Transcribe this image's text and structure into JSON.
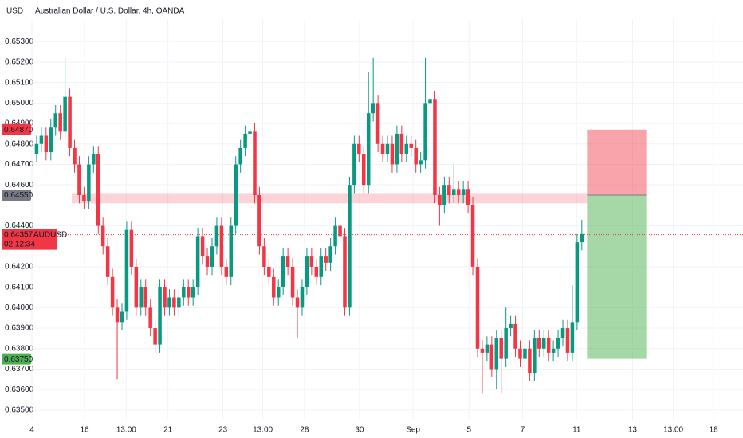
{
  "chart_data": {
    "type": "candlestick",
    "title": "Australian Dollar / U.S. Dollar, 4h, OANDA",
    "currency": "USD",
    "up_color": "#089981",
    "down_color": "#f23645",
    "grid": true,
    "ylim": [
      0.6348,
      0.6541
    ],
    "yticks": [
      {
        "value": 0.653,
        "label": "0.65300"
      },
      {
        "value": 0.652,
        "label": "0.65200"
      },
      {
        "value": 0.651,
        "label": "0.65100"
      },
      {
        "value": 0.65,
        "label": "0.65000"
      },
      {
        "value": 0.649,
        "label": "0.64900"
      },
      {
        "value": 0.648,
        "label": "0.64800"
      },
      {
        "value": 0.647,
        "label": "0.64700"
      },
      {
        "value": 0.646,
        "label": "0.64600"
      },
      {
        "value": 0.644,
        "label": "0.64400"
      },
      {
        "value": 0.642,
        "label": "0.64200"
      },
      {
        "value": 0.641,
        "label": "0.64100"
      },
      {
        "value": 0.64,
        "label": "0.64000"
      },
      {
        "value": 0.639,
        "label": "0.63900"
      },
      {
        "value": 0.638,
        "label": "0.63800"
      },
      {
        "value": 0.637,
        "label": "0.63700"
      },
      {
        "value": 0.636,
        "label": "0.63600"
      },
      {
        "value": 0.635,
        "label": "0.63500"
      }
    ],
    "xlim": [
      0,
      150
    ],
    "xticks": [
      {
        "value": 0,
        "label": "4"
      },
      {
        "value": 11.1,
        "label": "16"
      },
      {
        "value": 19.9,
        "label": "13:00"
      },
      {
        "value": 28.7,
        "label": "21"
      },
      {
        "value": 40.3,
        "label": "23"
      },
      {
        "value": 48.7,
        "label": "13:00"
      },
      {
        "value": 57.5,
        "label": "28"
      },
      {
        "value": 69.1,
        "label": "30"
      },
      {
        "value": 80.4,
        "label": "Sep"
      },
      {
        "value": 92.2,
        "label": "5"
      },
      {
        "value": 103.5,
        "label": "7"
      },
      {
        "value": 114.9,
        "label": "11"
      },
      {
        "value": 126.7,
        "label": "13"
      },
      {
        "value": 135.3,
        "label": "13:00"
      },
      {
        "value": 143.8,
        "label": "18"
      }
    ],
    "open": [
      0.6475,
      0.648,
      0.6484,
      0.6476,
      0.6488,
      0.6495,
      0.6486,
      0.6503,
      0.6478,
      0.647,
      0.6455,
      0.6452,
      0.647,
      0.6475,
      0.644,
      0.643,
      0.6415,
      0.64,
      0.6393,
      0.6398,
      0.6438,
      0.642,
      0.64,
      0.641,
      0.64,
      0.639,
      0.6382,
      0.641,
      0.64,
      0.6405,
      0.64,
      0.6405,
      0.641,
      0.6405,
      0.641,
      0.6435,
      0.6425,
      0.642,
      0.643,
      0.644,
      0.642,
      0.6415,
      0.644,
      0.647,
      0.6478,
      0.6485,
      0.6486,
      0.6455,
      0.643,
      0.642,
      0.6415,
      0.6405,
      0.641,
      0.6425,
      0.642,
      0.6405,
      0.64,
      0.641,
      0.6425,
      0.642,
      0.6415,
      0.6425,
      0.6422,
      0.643,
      0.644,
      0.6435,
      0.64,
      0.646,
      0.648,
      0.6475,
      0.646,
      0.6495,
      0.65,
      0.648,
      0.6475,
      0.648,
      0.647,
      0.6485,
      0.6475,
      0.648,
      0.6478,
      0.647,
      0.6472,
      0.65,
      0.6502,
      0.6455,
      0.645,
      0.646,
      0.6455,
      0.6458,
      0.6455,
      0.6458,
      0.645,
      0.642,
      0.638,
      0.6378,
      0.6382,
      0.637,
      0.6385,
      0.6375,
      0.639,
      0.6392,
      0.638,
      0.6375,
      0.638,
      0.6368,
      0.6385,
      0.638,
      0.6385,
      0.6378,
      0.638,
      0.6385,
      0.639,
      0.6378,
      0.6393,
      0.6432
    ],
    "high": [
      0.6484,
      0.6488,
      0.6488,
      0.6492,
      0.6499,
      0.6499,
      0.6522,
      0.6507,
      0.6482,
      0.6474,
      0.6459,
      0.6474,
      0.6479,
      0.6479,
      0.6444,
      0.6434,
      0.6419,
      0.6404,
      0.6402,
      0.6442,
      0.6442,
      0.6424,
      0.6414,
      0.6414,
      0.6404,
      0.6394,
      0.6414,
      0.6414,
      0.6409,
      0.6409,
      0.6409,
      0.6414,
      0.6414,
      0.6414,
      0.6439,
      0.6439,
      0.6429,
      0.6434,
      0.6444,
      0.6444,
      0.6424,
      0.6444,
      0.6474,
      0.6482,
      0.6489,
      0.649,
      0.649,
      0.6459,
      0.6434,
      0.6424,
      0.6419,
      0.6414,
      0.6429,
      0.6429,
      0.6424,
      0.6409,
      0.6414,
      0.6429,
      0.6429,
      0.6424,
      0.6429,
      0.6429,
      0.6434,
      0.6444,
      0.6444,
      0.6439,
      0.6464,
      0.6484,
      0.6484,
      0.6479,
      0.6515,
      0.6522,
      0.6504,
      0.6484,
      0.6484,
      0.6484,
      0.6489,
      0.6489,
      0.6484,
      0.6484,
      0.6482,
      0.6476,
      0.6522,
      0.6506,
      0.6506,
      0.6459,
      0.6464,
      0.6464,
      0.647,
      0.6462,
      0.6462,
      0.6462,
      0.6454,
      0.6424,
      0.6384,
      0.6386,
      0.6386,
      0.6389,
      0.6389,
      0.64,
      0.6396,
      0.6396,
      0.6384,
      0.6384,
      0.6384,
      0.6389,
      0.6389,
      0.6389,
      0.6389,
      0.6384,
      0.6389,
      0.6394,
      0.6394,
      0.6411,
      0.6436,
      0.6443
    ],
    "low": [
      0.6471,
      0.6476,
      0.6472,
      0.6472,
      0.6484,
      0.6482,
      0.6482,
      0.6474,
      0.6466,
      0.6451,
      0.6448,
      0.6448,
      0.6466,
      0.6436,
      0.6426,
      0.6411,
      0.6396,
      0.6365,
      0.6389,
      0.6394,
      0.6416,
      0.6396,
      0.6396,
      0.6396,
      0.6386,
      0.6378,
      0.6378,
      0.6396,
      0.6396,
      0.6396,
      0.6396,
      0.6401,
      0.6401,
      0.6401,
      0.6406,
      0.6421,
      0.6416,
      0.6416,
      0.6426,
      0.6416,
      0.6411,
      0.6411,
      0.6436,
      0.6466,
      0.6474,
      0.6481,
      0.6451,
      0.6426,
      0.6416,
      0.6411,
      0.6401,
      0.6401,
      0.6406,
      0.6416,
      0.6401,
      0.6385,
      0.6396,
      0.6406,
      0.6416,
      0.6411,
      0.6411,
      0.6418,
      0.6418,
      0.6426,
      0.6431,
      0.6396,
      0.6396,
      0.6456,
      0.6471,
      0.6456,
      0.6456,
      0.6491,
      0.6476,
      0.6471,
      0.6471,
      0.6466,
      0.6466,
      0.6471,
      0.6471,
      0.6474,
      0.6466,
      0.6466,
      0.6468,
      0.6496,
      0.6451,
      0.644,
      0.6446,
      0.6451,
      0.6451,
      0.6451,
      0.6451,
      0.6446,
      0.6416,
      0.6376,
      0.6358,
      0.6374,
      0.6366,
      0.636,
      0.6358,
      0.6371,
      0.6386,
      0.6376,
      0.6371,
      0.6371,
      0.6364,
      0.6364,
      0.6376,
      0.6376,
      0.6374,
      0.6374,
      0.6376,
      0.6381,
      0.6374,
      0.6374,
      0.6389,
      0.6428
    ],
    "close": [
      0.648,
      0.6484,
      0.6476,
      0.6488,
      0.6495,
      0.6486,
      0.6503,
      0.6478,
      0.647,
      0.6455,
      0.6452,
      0.647,
      0.6475,
      0.644,
      0.643,
      0.6415,
      0.64,
      0.6393,
      0.6398,
      0.6438,
      0.642,
      0.64,
      0.641,
      0.64,
      0.639,
      0.6382,
      0.641,
      0.64,
      0.6405,
      0.64,
      0.6405,
      0.641,
      0.6405,
      0.641,
      0.6435,
      0.6425,
      0.642,
      0.643,
      0.644,
      0.642,
      0.6415,
      0.644,
      0.647,
      0.6478,
      0.6485,
      0.6486,
      0.6455,
      0.643,
      0.642,
      0.6415,
      0.6405,
      0.641,
      0.6425,
      0.642,
      0.6405,
      0.64,
      0.641,
      0.6425,
      0.642,
      0.6415,
      0.6425,
      0.6422,
      0.643,
      0.644,
      0.6435,
      0.64,
      0.646,
      0.648,
      0.6475,
      0.646,
      0.6495,
      0.65,
      0.648,
      0.6475,
      0.648,
      0.647,
      0.6485,
      0.6475,
      0.648,
      0.6478,
      0.647,
      0.6472,
      0.65,
      0.6502,
      0.6455,
      0.645,
      0.646,
      0.6455,
      0.6458,
      0.6455,
      0.6458,
      0.645,
      0.642,
      0.638,
      0.6378,
      0.6382,
      0.637,
      0.6385,
      0.6375,
      0.639,
      0.6392,
      0.638,
      0.6375,
      0.638,
      0.6368,
      0.6385,
      0.638,
      0.6385,
      0.6378,
      0.638,
      0.6385,
      0.639,
      0.6378,
      0.6393,
      0.6432,
      0.6436
    ],
    "zone": [
      0.6456,
      0.6451
    ],
    "stop": {
      "value": 0.6487,
      "label": "0.64870"
    },
    "entry": {
      "value": 0.6455,
      "label": "0.64550"
    },
    "target": {
      "value": 0.6375,
      "label": "0.63750"
    },
    "last_price": {
      "value": 0.64357,
      "label": "0.64357"
    },
    "symbol": "AUDUSD",
    "countdown": "02:12:34"
  }
}
